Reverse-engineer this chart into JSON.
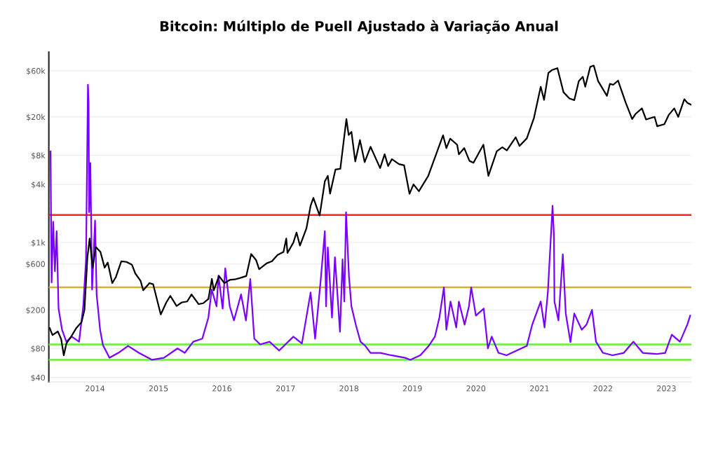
{
  "chart_data": {
    "type": "line",
    "title": "Bitcoin: Múltiplo de Puell Ajustado à Variação Anual",
    "log": "y",
    "grid": "y",
    "xlim": [
      "2013-04-10",
      "2023-05-25"
    ],
    "xticks": [
      {
        "value": "2014-01-01",
        "label": "2014"
      },
      {
        "value": "2015-01-01",
        "label": "2015"
      },
      {
        "value": "2016-01-01",
        "label": "2016"
      },
      {
        "value": "2017-01-01",
        "label": "2017"
      },
      {
        "value": "2018-01-01",
        "label": "2018"
      },
      {
        "value": "2019-01-01",
        "label": "2019"
      },
      {
        "value": "2020-01-01",
        "label": "2020"
      },
      {
        "value": "2021-01-01",
        "label": "2021"
      },
      {
        "value": "2022-01-01",
        "label": "2022"
      },
      {
        "value": "2023-01-01",
        "label": "2023"
      }
    ],
    "ylim": [
      36,
      94000
    ],
    "yticks": [
      {
        "value": 40,
        "label": "$40"
      },
      {
        "value": 80,
        "label": "$80"
      },
      {
        "value": 200,
        "label": "$200"
      },
      {
        "value": 600,
        "label": "$600"
      },
      {
        "value": 1000,
        "label": "$1k"
      },
      {
        "value": 4000,
        "label": "$4k"
      },
      {
        "value": 8000,
        "label": "$8k"
      },
      {
        "value": 20000,
        "label": "$20k"
      },
      {
        "value": 60000,
        "label": "$60k"
      }
    ],
    "ref_lines": [
      {
        "axis": "y",
        "value": 1930,
        "color": "#ff2020"
      },
      {
        "axis": "y",
        "value": 343,
        "color": "#d4b030"
      },
      {
        "axis": "y",
        "value": 88,
        "color": "#66ee33"
      },
      {
        "axis": "y",
        "value": 61,
        "color": "#66ee33"
      }
    ],
    "series": [
      {
        "color": "#7a00ff",
        "x": [
          "2013-04-20",
          "2013-04-23",
          "2013-04-26",
          "2013-05-05",
          "2013-05-15",
          "2013-05-25",
          "2013-06-05",
          "2013-06-25",
          "2013-07-20",
          "2013-08-20",
          "2013-10-01",
          "2013-10-25",
          "2013-11-10",
          "2013-11-21",
          "2013-11-25",
          "2013-11-28",
          "2013-12-05",
          "2013-12-15",
          "2014-01-01",
          "2014-01-10",
          "2014-01-30",
          "2014-02-15",
          "2014-03-25",
          "2014-05-15",
          "2014-07-10",
          "2014-09-10",
          "2014-11-25",
          "2015-02-01",
          "2015-04-20",
          "2015-06-01",
          "2015-07-20",
          "2015-09-10",
          "2015-10-15",
          "2015-11-03",
          "2015-12-01",
          "2015-12-12",
          "2016-01-05",
          "2016-01-20",
          "2016-02-15",
          "2016-03-10",
          "2016-04-20",
          "2016-05-18",
          "2016-06-12",
          "2016-07-05",
          "2016-08-08",
          "2016-10-01",
          "2016-11-25",
          "2017-02-15",
          "2017-04-05",
          "2017-05-25",
          "2017-06-20",
          "2017-07-22",
          "2017-08-15",
          "2017-08-22",
          "2017-09-01",
          "2017-09-25",
          "2017-10-12",
          "2017-11-10",
          "2017-11-25",
          "2017-12-05",
          "2017-12-15",
          "2018-01-01",
          "2018-01-15",
          "2018-02-10",
          "2018-03-08",
          "2018-04-05",
          "2018-05-05",
          "2018-07-01",
          "2018-09-01",
          "2018-11-20",
          "2018-12-20",
          "2019-02-15",
          "2019-04-05",
          "2019-05-10",
          "2019-06-05",
          "2019-07-01",
          "2019-07-15",
          "2019-08-08",
          "2019-09-10",
          "2019-09-25",
          "2019-10-28",
          "2019-11-22",
          "2019-12-05",
          "2020-01-01",
          "2020-02-15",
          "2020-03-10",
          "2020-04-01",
          "2020-05-10",
          "2020-06-25",
          "2020-10-20",
          "2020-11-20",
          "2021-01-08",
          "2021-01-30",
          "2021-02-18",
          "2021-03-17",
          "2021-03-25",
          "2021-03-28",
          "2021-04-20",
          "2021-05-15",
          "2021-06-01",
          "2021-06-28",
          "2021-07-20",
          "2021-09-01",
          "2021-09-28",
          "2021-10-30",
          "2021-11-22",
          "2022-01-01",
          "2022-02-25",
          "2022-05-01",
          "2022-06-25",
          "2022-08-18",
          "2022-11-05",
          "2022-12-25",
          "2023-02-01",
          "2023-03-20",
          "2023-05-01",
          "2023-05-18"
        ],
        "values": [
          8770,
          1640,
          386,
          1640,
          504,
          1310,
          207,
          125,
          94,
          106,
          94,
          218,
          670,
          43000,
          28300,
          2060,
          6670,
          326,
          1690,
          290,
          125,
          87,
          64,
          72,
          85,
          72,
          61,
          64,
          80,
          72,
          94,
          101,
          167,
          326,
          218,
          456,
          207,
          540,
          218,
          156,
          290,
          156,
          419,
          101,
          88,
          94,
          76,
          106,
          90,
          304,
          101,
          405,
          1310,
          218,
          890,
          167,
          705,
          119,
          670,
          245,
          2060,
          440,
          218,
          139,
          94,
          85,
          72,
          72,
          68,
          64,
          61,
          68,
          85,
          106,
          167,
          343,
          125,
          245,
          132,
          245,
          141,
          218,
          343,
          175,
          207,
          80,
          106,
          72,
          68,
          85,
          141,
          245,
          132,
          306,
          2400,
          1170,
          245,
          156,
          754,
          184,
          93,
          184,
          125,
          141,
          201,
          94,
          72,
          68,
          72,
          94,
          72,
          70,
          72,
          111,
          94,
          141,
          175
        ]
      },
      {
        "color": "#000000",
        "x": [
          "2013-04-15",
          "2013-05-01",
          "2013-06-01",
          "2013-06-20",
          "2013-07-05",
          "2013-07-20",
          "2013-08-15",
          "2013-09-15",
          "2013-10-15",
          "2013-11-01",
          "2013-11-18",
          "2013-12-01",
          "2013-12-18",
          "2014-01-05",
          "2014-02-01",
          "2014-02-25",
          "2014-03-15",
          "2014-04-10",
          "2014-05-01",
          "2014-06-01",
          "2014-07-01",
          "2014-08-01",
          "2014-08-20",
          "2014-09-20",
          "2014-10-05",
          "2014-11-10",
          "2014-12-01",
          "2015-01-14",
          "2015-02-15",
          "2015-03-10",
          "2015-04-15",
          "2015-05-15",
          "2015-06-15",
          "2015-07-10",
          "2015-08-20",
          "2015-09-15",
          "2015-10-15",
          "2015-11-04",
          "2015-11-15",
          "2015-12-15",
          "2016-01-15",
          "2016-02-15",
          "2016-03-15",
          "2016-04-15",
          "2016-05-20",
          "2016-06-17",
          "2016-07-15",
          "2016-08-02",
          "2016-09-15",
          "2016-10-15",
          "2016-11-15",
          "2016-12-20",
          "2017-01-05",
          "2017-01-12",
          "2017-02-15",
          "2017-03-05",
          "2017-03-25",
          "2017-05-01",
          "2017-05-25",
          "2017-06-10",
          "2017-07-16",
          "2017-08-15",
          "2017-09-01",
          "2017-09-14",
          "2017-10-15",
          "2017-11-12",
          "2017-12-17",
          "2017-12-30",
          "2018-01-15",
          "2018-02-06",
          "2018-03-05",
          "2018-04-01",
          "2018-05-05",
          "2018-06-29",
          "2018-07-25",
          "2018-08-14",
          "2018-09-05",
          "2018-10-15",
          "2018-11-14",
          "2018-12-15",
          "2019-01-07",
          "2019-02-07",
          "2019-04-02",
          "2019-05-15",
          "2019-06-26",
          "2019-07-15",
          "2019-08-06",
          "2019-09-15",
          "2019-09-25",
          "2019-10-26",
          "2019-11-25",
          "2019-12-18",
          "2020-02-13",
          "2020-03-13",
          "2020-04-30",
          "2020-06-01",
          "2020-06-27",
          "2020-08-17",
          "2020-09-08",
          "2020-10-20",
          "2020-11-30",
          "2021-01-08",
          "2021-01-27",
          "2021-02-21",
          "2021-03-13",
          "2021-04-14",
          "2021-05-19",
          "2021-06-22",
          "2021-07-20",
          "2021-08-15",
          "2021-09-07",
          "2021-09-21",
          "2021-10-20",
          "2021-11-09",
          "2021-12-04",
          "2022-01-24",
          "2022-02-10",
          "2022-03-01",
          "2022-03-29",
          "2022-05-12",
          "2022-06-18",
          "2022-07-08",
          "2022-08-13",
          "2022-09-06",
          "2022-10-25",
          "2022-11-09",
          "2022-12-20",
          "2023-01-14",
          "2023-02-15",
          "2023-03-10",
          "2023-04-14",
          "2023-05-01",
          "2023-05-22"
        ],
        "values": [
          130,
          110,
          120,
          100,
          68,
          90,
          105,
          130,
          150,
          200,
          700,
          1100,
          550,
          900,
          800,
          550,
          620,
          380,
          440,
          640,
          630,
          590,
          480,
          400,
          320,
          380,
          370,
          180,
          240,
          280,
          220,
          240,
          245,
          290,
          230,
          235,
          260,
          420,
          320,
          450,
          380,
          410,
          415,
          430,
          450,
          760,
          660,
          530,
          610,
          640,
          740,
          800,
          1100,
          780,
          1000,
          1270,
          930,
          1400,
          2400,
          2900,
          1900,
          4300,
          4900,
          3200,
          5700,
          5800,
          19000,
          13000,
          14000,
          6900,
          11500,
          6800,
          9800,
          5900,
          8200,
          6200,
          7300,
          6500,
          6300,
          3200,
          4000,
          3400,
          4900,
          8000,
          12900,
          9500,
          11900,
          10300,
          8200,
          9500,
          7000,
          6700,
          10300,
          4900,
          8800,
          9700,
          9000,
          12300,
          10000,
          12000,
          19500,
          41000,
          30000,
          57000,
          61000,
          64000,
          36000,
          31000,
          29800,
          47000,
          52000,
          41000,
          66000,
          68000,
          47000,
          33000,
          44000,
          43000,
          47500,
          28000,
          19000,
          21500,
          24500,
          18800,
          20000,
          16000,
          16800,
          20900,
          24500,
          20000,
          30500,
          28000,
          26800
        ]
      }
    ]
  }
}
